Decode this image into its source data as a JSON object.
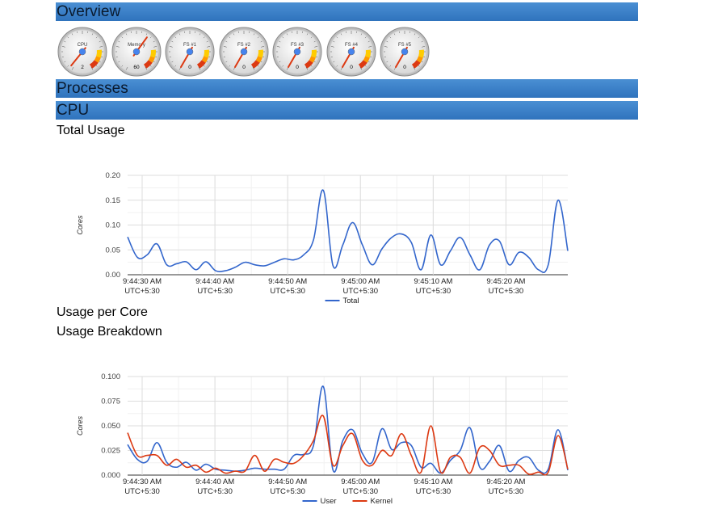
{
  "sections": {
    "overview": "Overview",
    "processes": "Processes",
    "cpu": "CPU"
  },
  "gauges": [
    {
      "label": "CPU",
      "value": "2",
      "needle": 0.03
    },
    {
      "label": "Memory",
      "value": "60",
      "needle": 0.62
    },
    {
      "label": "FS #1",
      "value": "0",
      "needle": 0.0
    },
    {
      "label": "FS #2",
      "value": "0",
      "needle": 0.0
    },
    {
      "label": "FS #3",
      "value": "0",
      "needle": 0.0
    },
    {
      "label": "FS #4",
      "value": "0",
      "needle": 0.0
    },
    {
      "label": "FS #5",
      "value": "0",
      "needle": 0.0
    }
  ],
  "cpu": {
    "total_usage_title": "Total Usage",
    "usage_per_core_title": "Usage per Core",
    "usage_breakdown_title": "Usage Breakdown"
  },
  "chart_data": [
    {
      "type": "line",
      "ylabel": "Cores",
      "ylim": [
        0,
        0.2
      ],
      "yticks": [
        "0.00",
        "0.05",
        "0.10",
        "0.15",
        "0.20"
      ],
      "xlim": [
        0,
        60.5
      ],
      "xticks": [
        {
          "t": 2,
          "l1": "9:44:30 AM",
          "l2": "UTC+5:30"
        },
        {
          "t": 12,
          "l1": "9:44:40 AM",
          "l2": "UTC+5:30"
        },
        {
          "t": 22,
          "l1": "9:44:50 AM",
          "l2": "UTC+5:30"
        },
        {
          "t": 32,
          "l1": "9:45:00 AM",
          "l2": "UTC+5:30"
        },
        {
          "t": 42,
          "l1": "9:45:10 AM",
          "l2": "UTC+5:30"
        },
        {
          "t": 52,
          "l1": "9:45:20 AM",
          "l2": "UTC+5:30"
        }
      ],
      "grid": true,
      "legend": "bottom",
      "series": [
        {
          "name": "Total",
          "color": "#3366cc",
          "values": [
            0.076,
            0.035,
            0.04,
            0.062,
            0.02,
            0.022,
            0.026,
            0.01,
            0.026,
            0.008,
            0.008,
            0.015,
            0.025,
            0.02,
            0.018,
            0.025,
            0.032,
            0.03,
            0.04,
            0.07,
            0.17,
            0.018,
            0.06,
            0.105,
            0.06,
            0.02,
            0.052,
            0.075,
            0.082,
            0.065,
            0.01,
            0.08,
            0.02,
            0.048,
            0.075,
            0.04,
            0.01,
            0.06,
            0.068,
            0.02,
            0.045,
            0.035,
            0.01,
            0.02,
            0.15,
            0.048
          ]
        }
      ]
    },
    {
      "type": "line",
      "ylabel": "Cores",
      "ylim": [
        0,
        0.1
      ],
      "yticks": [
        "0.000",
        "0.025",
        "0.050",
        "0.075",
        "0.100"
      ],
      "xlim": [
        0,
        60.5
      ],
      "xticks": [
        {
          "t": 2,
          "l1": "9:44:30 AM",
          "l2": "UTC+5:30"
        },
        {
          "t": 12,
          "l1": "9:44:40 AM",
          "l2": "UTC+5:30"
        },
        {
          "t": 22,
          "l1": "9:44:50 AM",
          "l2": "UTC+5:30"
        },
        {
          "t": 32,
          "l1": "9:45:00 AM",
          "l2": "UTC+5:30"
        },
        {
          "t": 42,
          "l1": "9:45:10 AM",
          "l2": "UTC+5:30"
        },
        {
          "t": 52,
          "l1": "9:45:20 AM",
          "l2": "UTC+5:30"
        }
      ],
      "grid": true,
      "legend": "bottom",
      "series": [
        {
          "name": "User",
          "color": "#3366cc",
          "values": [
            0.031,
            0.016,
            0.014,
            0.033,
            0.013,
            0.008,
            0.013,
            0.005,
            0.011,
            0.006,
            0.005,
            0.004,
            0.005,
            0.007,
            0.006,
            0.006,
            0.006,
            0.02,
            0.021,
            0.03,
            0.09,
            0.005,
            0.035,
            0.046,
            0.022,
            0.013,
            0.047,
            0.026,
            0.033,
            0.03,
            0.008,
            0.012,
            0.002,
            0.015,
            0.025,
            0.048,
            0.008,
            0.014,
            0.03,
            0.004,
            0.015,
            0.018,
            0.005,
            0.006,
            0.046,
            0.005
          ]
        },
        {
          "name": "Kernel",
          "color": "#dc3912",
          "values": [
            0.043,
            0.02,
            0.02,
            0.02,
            0.01,
            0.016,
            0.008,
            0.01,
            0.003,
            0.007,
            0.002,
            0.004,
            0.004,
            0.02,
            0.004,
            0.016,
            0.013,
            0.012,
            0.02,
            0.035,
            0.06,
            0.01,
            0.03,
            0.042,
            0.015,
            0.01,
            0.025,
            0.02,
            0.042,
            0.02,
            0.003,
            0.05,
            0.003,
            0.018,
            0.018,
            0.002,
            0.028,
            0.025,
            0.01,
            0.01,
            0.01,
            0.001,
            0.003,
            0.003,
            0.04,
            0.006
          ]
        }
      ]
    }
  ]
}
